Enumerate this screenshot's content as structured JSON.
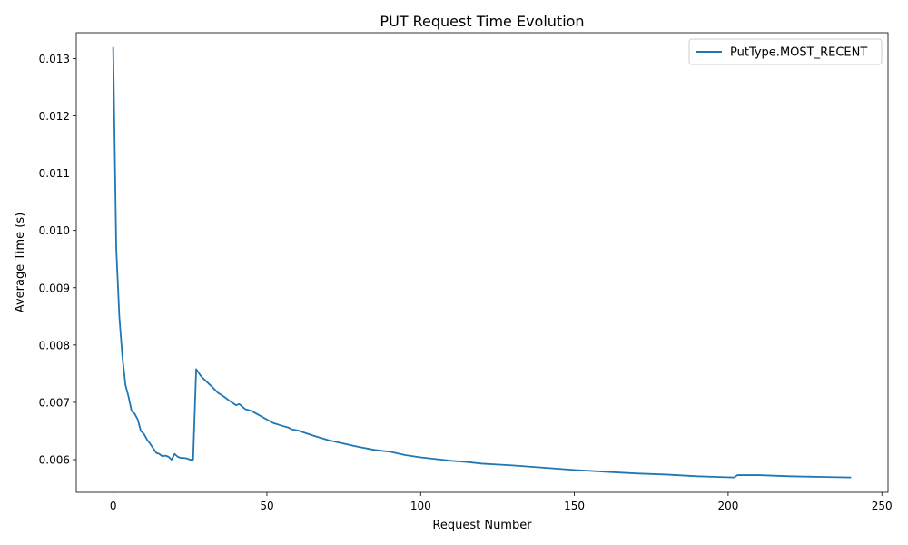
{
  "chart_data": {
    "type": "line",
    "title": "PUT Request Time Evolution",
    "xlabel": "Request Number",
    "ylabel": "Average Time (s)",
    "xlim": [
      -12,
      252
    ],
    "ylim": [
      0.00543,
      0.01345
    ],
    "xticks": [
      0,
      50,
      100,
      150,
      200,
      250
    ],
    "yticks": [
      0.006,
      0.007,
      0.008,
      0.009,
      0.01,
      0.011,
      0.012,
      0.013
    ],
    "ytick_labels": [
      "0.006",
      "0.007",
      "0.008",
      "0.009",
      "0.010",
      "0.011",
      "0.012",
      "0.013"
    ],
    "grid": false,
    "legend_position": "top-right",
    "series": [
      {
        "name": "PutType.MOST_RECENT",
        "color": "#1f77b4",
        "points": [
          [
            0,
            0.0132
          ],
          [
            1,
            0.0097
          ],
          [
            2,
            0.0085
          ],
          [
            3,
            0.0078
          ],
          [
            4,
            0.0073
          ],
          [
            5,
            0.0071
          ],
          [
            6,
            0.00685
          ],
          [
            7,
            0.0068
          ],
          [
            8,
            0.0067
          ],
          [
            9,
            0.0065
          ],
          [
            10,
            0.00645
          ],
          [
            11,
            0.00635
          ],
          [
            12,
            0.00628
          ],
          [
            13,
            0.0062
          ],
          [
            14,
            0.00612
          ],
          [
            15,
            0.0061
          ],
          [
            16,
            0.00606
          ],
          [
            17,
            0.00607
          ],
          [
            18,
            0.00605
          ],
          [
            19,
            0.006
          ],
          [
            20,
            0.0061
          ],
          [
            21,
            0.00605
          ],
          [
            22,
            0.00603
          ],
          [
            23,
            0.00603
          ],
          [
            24,
            0.00602
          ],
          [
            25,
            0.006
          ],
          [
            26,
            0.006
          ],
          [
            27,
            0.00758
          ],
          [
            28,
            0.0075
          ],
          [
            29,
            0.00743
          ],
          [
            30,
            0.00738
          ],
          [
            32,
            0.00728
          ],
          [
            34,
            0.00717
          ],
          [
            36,
            0.0071
          ],
          [
            38,
            0.00702
          ],
          [
            40,
            0.00695
          ],
          [
            41,
            0.00697
          ],
          [
            43,
            0.00688
          ],
          [
            45,
            0.00685
          ],
          [
            48,
            0.00676
          ],
          [
            50,
            0.0067
          ],
          [
            52,
            0.00664
          ],
          [
            55,
            0.00659
          ],
          [
            57,
            0.00656
          ],
          [
            58,
            0.00653
          ],
          [
            60,
            0.00651
          ],
          [
            65,
            0.00642
          ],
          [
            70,
            0.00634
          ],
          [
            75,
            0.00628
          ],
          [
            80,
            0.00622
          ],
          [
            85,
            0.00617
          ],
          [
            88,
            0.00615
          ],
          [
            90,
            0.00614
          ],
          [
            95,
            0.00608
          ],
          [
            100,
            0.00604
          ],
          [
            105,
            0.00601
          ],
          [
            110,
            0.00598
          ],
          [
            115,
            0.00596
          ],
          [
            120,
            0.00593
          ],
          [
            130,
            0.0059
          ],
          [
            140,
            0.00586
          ],
          [
            150,
            0.00582
          ],
          [
            160,
            0.00579
          ],
          [
            170,
            0.00576
          ],
          [
            180,
            0.00574
          ],
          [
            190,
            0.00571
          ],
          [
            196,
            0.0057
          ],
          [
            202,
            0.00569
          ],
          [
            203,
            0.00573
          ],
          [
            210,
            0.00573
          ],
          [
            220,
            0.00571
          ],
          [
            230,
            0.0057
          ],
          [
            240,
            0.00569
          ]
        ]
      }
    ]
  }
}
